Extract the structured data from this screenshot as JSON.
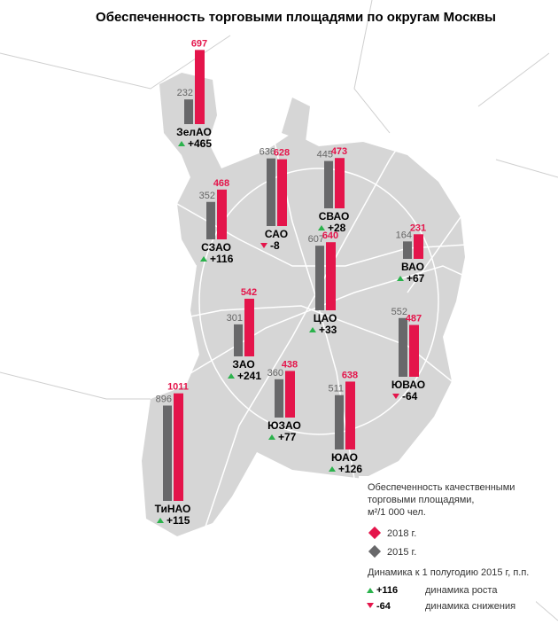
{
  "title": "Обеспеченность торговыми площадями по округам Москвы",
  "colors": {
    "y2018": "#e4154b",
    "y2015": "#68686a",
    "up": "#2bb24c",
    "down": "#e4154b"
  },
  "districts": [
    {
      "name": "ЗелАО",
      "v2015": 232,
      "v2018": 697,
      "change": "+465"
    },
    {
      "name": "САО",
      "v2015": 636,
      "v2018": 628,
      "change": "-8"
    },
    {
      "name": "СВАО",
      "v2015": 445,
      "v2018": 473,
      "change": "+28"
    },
    {
      "name": "СЗАО",
      "v2015": 352,
      "v2018": 468,
      "change": "+116"
    },
    {
      "name": "ВАО",
      "v2015": 164,
      "v2018": 231,
      "change": "+67"
    },
    {
      "name": "ЦАО",
      "v2015": 607,
      "v2018": 640,
      "change": "+33"
    },
    {
      "name": "ЗАО",
      "v2015": 301,
      "v2018": 542,
      "change": "+241"
    },
    {
      "name": "ЮВАО",
      "v2015": 552,
      "v2018": 487,
      "change": "-64"
    },
    {
      "name": "ЮЗАО",
      "v2015": 360,
      "v2018": 438,
      "change": "+77"
    },
    {
      "name": "ЮАО",
      "v2015": 511,
      "v2018": 638,
      "change": "+126"
    },
    {
      "name": "ТиНАО",
      "v2015": 896,
      "v2018": 1011,
      "change": "+115"
    }
  ],
  "legend": {
    "heading": [
      "Обеспеченность качественными",
      "торговыми площадями,",
      "м²/1 000 чел."
    ],
    "y2018": "2018 г.",
    "y2015": "2015 г.",
    "dynamics": "Динамика к 1 полугодию 2015 г, п.п.",
    "up_value": "+116",
    "up_label": "динамика роста",
    "down_value": "-64",
    "down_label": "динамика снижения"
  }
}
